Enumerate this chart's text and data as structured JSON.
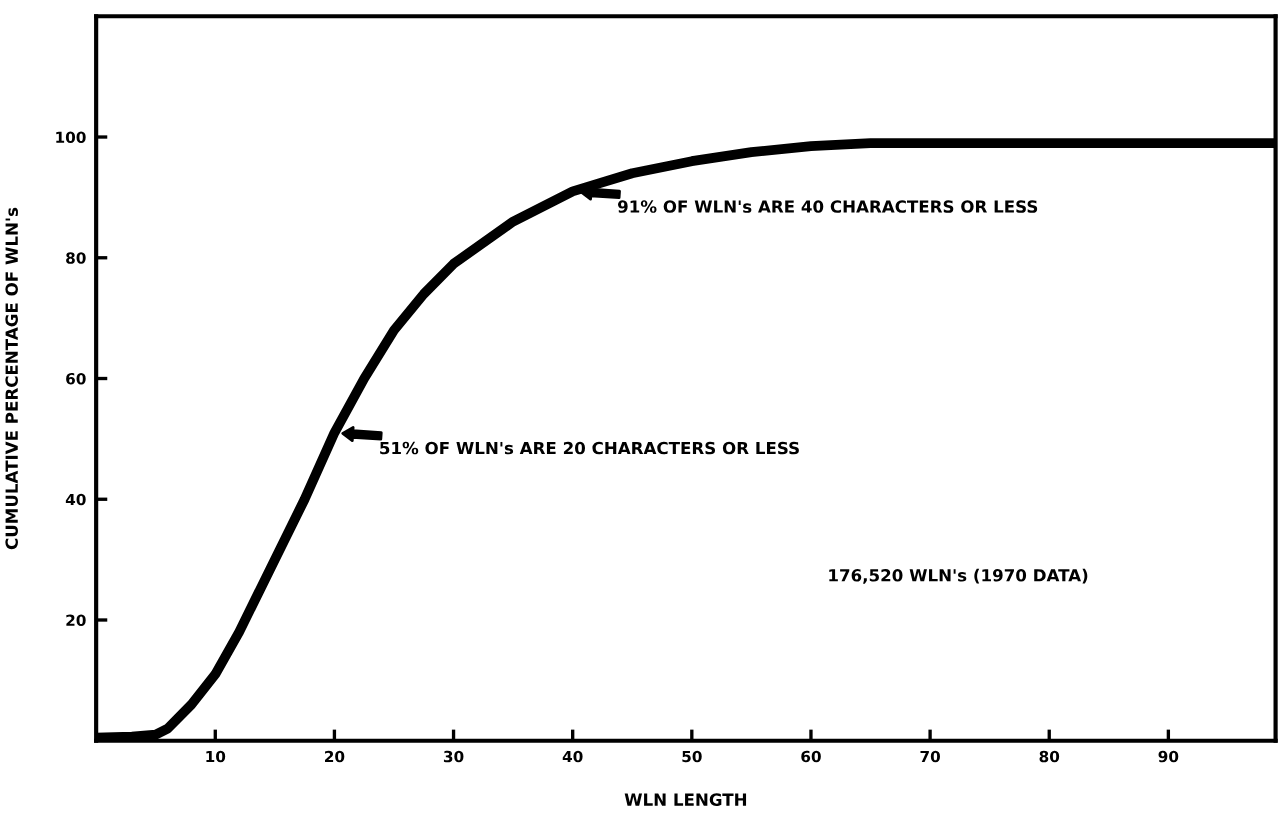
{
  "chart_data": {
    "type": "line",
    "xlabel": "WLN LENGTH",
    "ylabel": "CUMULATIVE PERCENTAGE OF WLN's",
    "x": [
      0,
      3,
      5,
      6,
      8,
      10,
      12,
      15,
      17.5,
      20,
      22.5,
      25,
      27.5,
      30,
      35,
      40,
      45,
      50,
      55,
      60,
      65,
      70,
      80,
      90,
      99
    ],
    "series": [
      {
        "color": "#000000",
        "values": [
          0.5,
          0.7,
          1,
          2,
          6,
          11,
          18,
          30,
          40,
          51,
          60,
          68,
          74,
          79,
          86,
          91,
          94,
          96,
          97.5,
          98.5,
          99,
          99,
          99,
          99,
          99
        ]
      }
    ],
    "xlim": [
      0,
      99
    ],
    "ylim": [
      0,
      120
    ],
    "xticks": [
      10,
      20,
      30,
      40,
      50,
      60,
      70,
      80,
      90
    ],
    "yticks": [
      20,
      40,
      60,
      80,
      100
    ],
    "grid": false,
    "legend": false,
    "marker": "none",
    "line_style": "solid",
    "annotations": [
      {
        "text": "51% OF WLN's ARE 20 CHARACTERS OR LESS",
        "x": 20,
        "y": 51
      },
      {
        "text": "91% OF WLN's ARE 40 CHARACTERS OR LESS",
        "x": 40,
        "y": 91
      },
      "176,520 WLN's (1970 DATA)"
    ]
  }
}
